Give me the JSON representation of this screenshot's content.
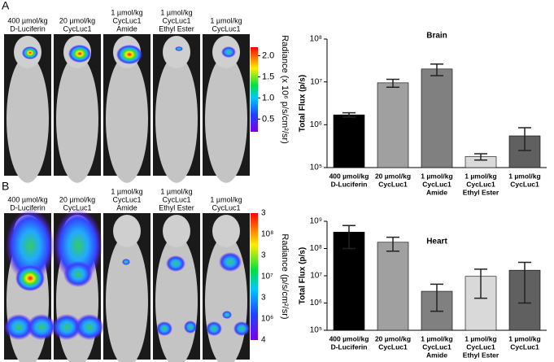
{
  "panels": [
    {
      "label": "A",
      "image_labels": [
        [
          "400 µmol/kg",
          "D-Luciferin"
        ],
        [
          "20 µmol/kg",
          "CycLuc1"
        ],
        [
          "1 µmol/kg",
          "CycLuc1",
          "Amide"
        ],
        [
          "1 µmol/kg",
          "CycLuc1",
          "Ethyl Ester"
        ],
        [
          "1 µmol/kg",
          "CycLuc1"
        ]
      ],
      "colorbar": {
        "title": "Radiance (x 10⁶ p/s/cm²/sr)",
        "ticks": [
          0.5,
          {
            "value": 1,
            "label": "1.0"
          },
          1.5,
          {
            "value": 2,
            "label": "2.0"
          }
        ]
      }
    },
    {
      "label": "B",
      "image_labels": [
        [
          "400 µmol/kg",
          "D-Luciferin"
        ],
        [
          "20 µmol/kg",
          "CycLuc1"
        ],
        [
          "1 µmol/kg",
          "CycLuc1",
          "Amide"
        ],
        [
          "1 µmol/kg",
          "CycLuc1",
          "Ethyl Ester"
        ],
        [
          "1 µmol/kg",
          "CycLuc1"
        ]
      ],
      "colorbar": {
        "title": "Radiance (p/s/cm²/sr)",
        "tick_labels": [
          "3",
          "10⁸",
          "3",
          "10⁷",
          "3",
          "10⁶",
          "4"
        ]
      }
    }
  ],
  "chart_data": [
    {
      "type": "bar",
      "title": "Brain",
      "y_label": "Total Flux (p/s)",
      "log_y": true,
      "categories": [
        [
          "400 µmol/kg",
          "D-Luciferin"
        ],
        [
          "20 µmol/kg",
          "CycLuc1"
        ],
        [
          "1 µmol/kg",
          "CycLuc1",
          "Amide"
        ],
        [
          "1 µmol/kg",
          "CycLuc1",
          "Ethyl Ester"
        ],
        [
          "1 µmol/kg",
          "CycLuc1"
        ]
      ],
      "values": [
        1700000,
        9500000,
        20000000,
        180000,
        550000
      ],
      "error": [
        200000,
        2000000,
        6000000,
        30000,
        300000
      ],
      "colors": [
        "#000000",
        "#a0a0a0",
        "#808080",
        "#d9d9d9",
        "#606060"
      ],
      "ylim": [
        100000,
        100000000
      ],
      "yticks": [
        {
          "value": 100000,
          "label": "10⁵"
        },
        {
          "value": 1000000,
          "label": "10⁶"
        },
        {
          "value": 10000000,
          "label": "10⁷"
        },
        {
          "value": 100000000,
          "label": "10⁸"
        }
      ]
    },
    {
      "type": "bar",
      "title": "Heart",
      "y_label": "Total Flux (p/s)",
      "log_y": true,
      "categories": [
        [
          "400 µmol/kg",
          "D-Luciferin"
        ],
        [
          "20 µmol/kg",
          "CycLuc1"
        ],
        [
          "1 µmol/kg",
          "CycLuc1",
          "Amide"
        ],
        [
          "1 µmol/kg",
          "CycLuc1",
          "Ethyl Ester"
        ],
        [
          "1 µmol/kg",
          "CycLuc1"
        ]
      ],
      "values": [
        400000000,
        170000000,
        2700000,
        9500000,
        16000000
      ],
      "error": [
        300000000,
        90000000,
        2200000,
        8000000,
        15000000
      ],
      "colors": [
        "#000000",
        "#a0a0a0",
        "#808080",
        "#d9d9d9",
        "#606060"
      ],
      "ylim": [
        100000,
        1000000000
      ],
      "yticks": [
        {
          "value": 100000,
          "label": "10⁵"
        },
        {
          "value": 1000000,
          "label": "10⁶"
        },
        {
          "value": 10000000,
          "label": "10⁷"
        },
        {
          "value": 100000000,
          "label": "10⁸"
        },
        {
          "value": 1000000000,
          "label": "10⁹"
        }
      ]
    }
  ]
}
